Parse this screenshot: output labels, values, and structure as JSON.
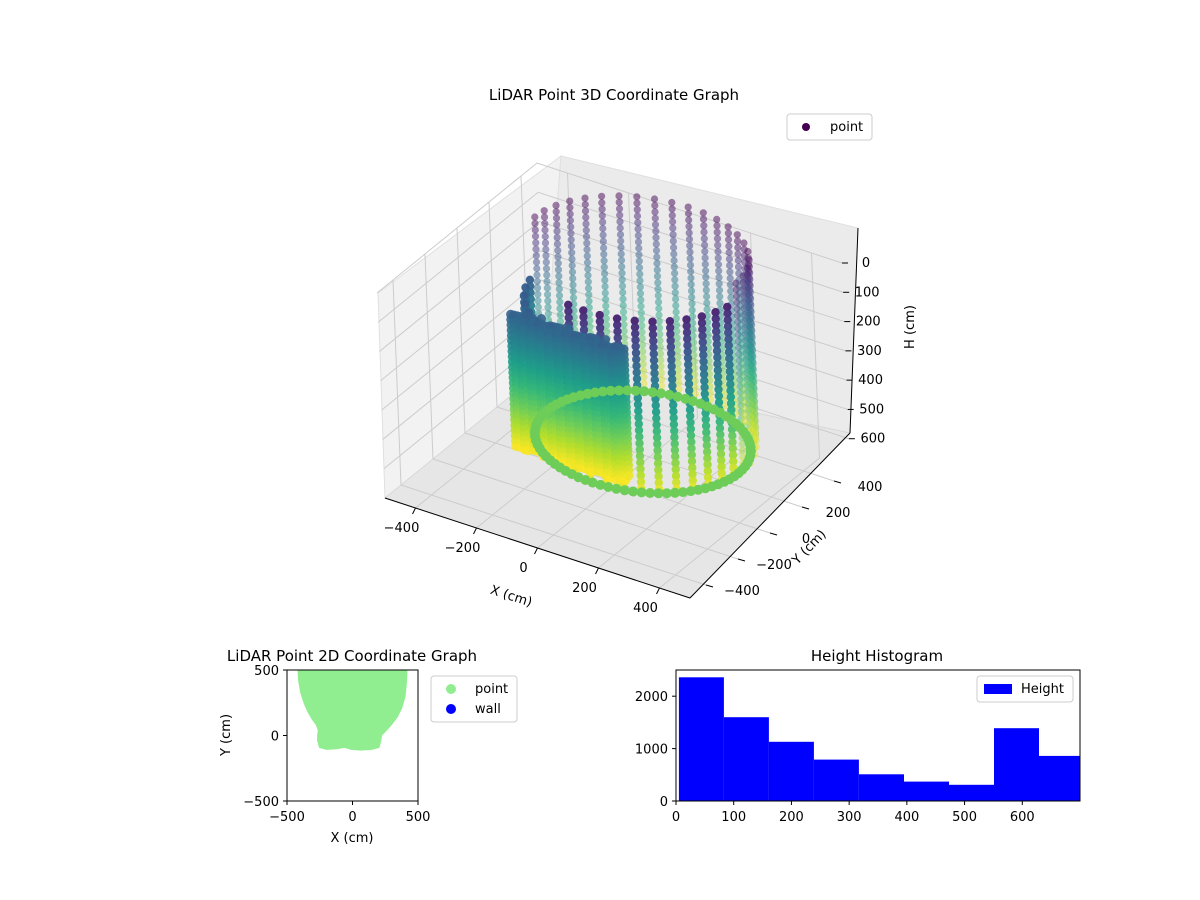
{
  "colors": {
    "viridis_dark": "#440154",
    "viridis_mid": "#21918c",
    "viridis_light": "#fde725",
    "wall_line_light": "#5b4e85",
    "point_2d": "#90ee90",
    "wall_2d": "#0000ff",
    "histogram": "#0000ff",
    "pane": "#f2f2f2",
    "grid": "#cccccc",
    "axis": "#000000"
  },
  "chart_data": [
    {
      "type": "scatter",
      "title": "LiDAR Point 3D Coordinate Graph",
      "xlabel": "X (cm)",
      "ylabel": "Y (cm)",
      "zlabel": "H (cm)",
      "xlim": [
        -500,
        500
      ],
      "ylim": [
        -500,
        500
      ],
      "zlim": [
        0,
        700
      ],
      "z_inverted": true,
      "x_ticks": [
        "−400",
        "−200",
        "0",
        "200",
        "400"
      ],
      "y_ticks": [
        "−400",
        "−200",
        "0",
        "200",
        "400"
      ],
      "z_ticks": [
        "0",
        "100",
        "200",
        "300",
        "400",
        "500",
        "600"
      ],
      "grid": true,
      "legend": {
        "position": "top-right",
        "entries": [
          "point"
        ]
      },
      "colormap": "viridis",
      "wall_profile_y_top": 500,
      "wall_profile_y_bottom": -100,
      "wall_profile_x_halfwidth": 450
    },
    {
      "type": "scatter",
      "title": "LiDAR Point 2D Coordinate Graph",
      "xlabel": "X (cm)",
      "ylabel": "Y (cm)",
      "xlim": [
        -500,
        500
      ],
      "ylim": [
        -500,
        500
      ],
      "x_ticks": [
        "−500",
        "0",
        "500"
      ],
      "y_ticks": [
        "−500",
        "0",
        "500"
      ],
      "legend": {
        "position": "outside-right",
        "entries": [
          "point",
          "wall"
        ]
      },
      "series": [
        {
          "name": "point",
          "color": "#90ee90",
          "outline": [
            [
              -420,
              500
            ],
            [
              -415,
              420
            ],
            [
              -400,
              330
            ],
            [
              -375,
              250
            ],
            [
              -345,
              180
            ],
            [
              -310,
              120
            ],
            [
              -280,
              80
            ],
            [
              -265,
              40
            ],
            [
              -270,
              0
            ],
            [
              -270,
              -40
            ],
            [
              -255,
              -95
            ],
            [
              -200,
              -110
            ],
            [
              -120,
              -105
            ],
            [
              -60,
              -95
            ],
            [
              -10,
              -110
            ],
            [
              60,
              -115
            ],
            [
              150,
              -110
            ],
            [
              205,
              -95
            ],
            [
              220,
              -40
            ],
            [
              225,
              0
            ],
            [
              255,
              30
            ],
            [
              300,
              80
            ],
            [
              345,
              140
            ],
            [
              380,
              210
            ],
            [
              405,
              300
            ],
            [
              415,
              400
            ],
            [
              420,
              500
            ]
          ]
        },
        {
          "name": "wall",
          "color": "#0000ff",
          "outline": []
        }
      ]
    },
    {
      "type": "bar",
      "title": "Height Histogram",
      "xlabel": "",
      "ylabel": "",
      "xlim": [
        0,
        700
      ],
      "ylim": [
        0,
        2500
      ],
      "x_ticks": [
        "0",
        "100",
        "200",
        "300",
        "400",
        "500",
        "600"
      ],
      "y_ticks": [
        "0",
        "1000",
        "2000"
      ],
      "legend": {
        "position": "top-right",
        "entries": [
          "Height"
        ]
      },
      "series": [
        {
          "name": "Height",
          "bin_edges": [
            5,
            83,
            161,
            239,
            317,
            395,
            473,
            551,
            629,
            707
          ],
          "values": [
            2360,
            1600,
            1130,
            790,
            510,
            370,
            310,
            1390,
            860
          ]
        }
      ]
    }
  ]
}
